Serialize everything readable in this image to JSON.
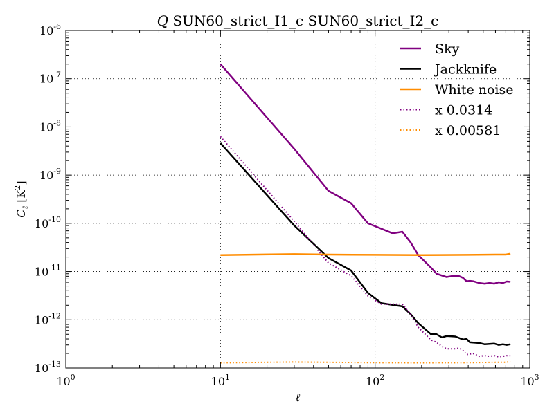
{
  "chart_data": {
    "type": "line",
    "title_symbol": "Q",
    "title_rest": " SUN60_strict_I1_c SUN60_strict_I2_c",
    "xlabel": "ℓ",
    "ylabel": "C_ℓ [K²]",
    "ylabel_main": "C",
    "ylabel_sub": "ℓ",
    "ylabel_unit_open": " [K",
    "ylabel_unit_sup": "2",
    "ylabel_unit_close": "]",
    "xscale": "log",
    "yscale": "log",
    "xlim": [
      1,
      1000
    ],
    "ylim": [
      1e-13,
      1e-06
    ],
    "grid": true,
    "legend_position": "top-right",
    "x_ticks": [
      {
        "value": 1,
        "base": "10",
        "exp": "0"
      },
      {
        "value": 10,
        "base": "10",
        "exp": "1"
      },
      {
        "value": 100,
        "base": "10",
        "exp": "2"
      },
      {
        "value": 1000,
        "base": "10",
        "exp": "3"
      }
    ],
    "y_ticks": [
      {
        "value": 1e-13,
        "base": "10",
        "exp": "-13"
      },
      {
        "value": 1e-12,
        "base": "10",
        "exp": "-12"
      },
      {
        "value": 1e-11,
        "base": "10",
        "exp": "-11"
      },
      {
        "value": 1e-10,
        "base": "10",
        "exp": "-10"
      },
      {
        "value": 1e-09,
        "base": "10",
        "exp": "-9"
      },
      {
        "value": 1e-08,
        "base": "10",
        "exp": "-8"
      },
      {
        "value": 1e-07,
        "base": "10",
        "exp": "-7"
      },
      {
        "value": 1e-06,
        "base": "10",
        "exp": "-6"
      }
    ],
    "series": [
      {
        "name": "Sky",
        "color": "#800080",
        "style": "solid",
        "points": [
          [
            10,
            2e-07
          ],
          [
            30,
            3.5e-09
          ],
          [
            50,
            4.7e-10
          ],
          [
            70,
            2.6e-10
          ],
          [
            90,
            1e-10
          ],
          [
            130,
            6.2e-11
          ],
          [
            150,
            6.7e-11
          ],
          [
            170,
            4e-11
          ],
          [
            190,
            2.2e-11
          ],
          [
            230,
            1.2e-11
          ],
          [
            250,
            9e-12
          ],
          [
            290,
            7.7e-12
          ],
          [
            310,
            8e-12
          ],
          [
            350,
            8e-12
          ],
          [
            370,
            7.4e-12
          ],
          [
            390,
            6.3e-12
          ],
          [
            410,
            6.4e-12
          ],
          [
            430,
            6.3e-12
          ],
          [
            470,
            5.8e-12
          ],
          [
            510,
            5.6e-12
          ],
          [
            550,
            5.8e-12
          ],
          [
            590,
            5.6e-12
          ],
          [
            630,
            6e-12
          ],
          [
            670,
            5.8e-12
          ],
          [
            710,
            6.2e-12
          ],
          [
            750,
            6.1e-12
          ]
        ]
      },
      {
        "name": "Jackknife",
        "color": "#000000",
        "style": "solid",
        "points": [
          [
            10,
            4.6e-09
          ],
          [
            30,
            9e-11
          ],
          [
            50,
            1.9e-11
          ],
          [
            70,
            1.05e-11
          ],
          [
            90,
            3.6e-12
          ],
          [
            110,
            2.2e-12
          ],
          [
            150,
            1.9e-12
          ],
          [
            170,
            1.3e-12
          ],
          [
            190,
            8.5e-13
          ],
          [
            230,
            5e-13
          ],
          [
            250,
            5e-13
          ],
          [
            270,
            4.3e-13
          ],
          [
            290,
            4.6e-13
          ],
          [
            330,
            4.5e-13
          ],
          [
            370,
            3.9e-13
          ],
          [
            390,
            4e-13
          ],
          [
            410,
            3.4e-13
          ],
          [
            470,
            3.3e-13
          ],
          [
            510,
            3.1e-13
          ],
          [
            590,
            3.2e-13
          ],
          [
            630,
            3e-13
          ],
          [
            670,
            3.1e-13
          ],
          [
            710,
            3e-13
          ],
          [
            750,
            3.1e-13
          ]
        ]
      },
      {
        "name": "White noise",
        "color": "#ff8c00",
        "style": "solid",
        "points": [
          [
            10,
            2.2e-11
          ],
          [
            30,
            2.3e-11
          ],
          [
            50,
            2.25e-11
          ],
          [
            100,
            2.22e-11
          ],
          [
            200,
            2.2e-11
          ],
          [
            400,
            2.22e-11
          ],
          [
            600,
            2.25e-11
          ],
          [
            700,
            2.25e-11
          ],
          [
            750,
            2.35e-11
          ]
        ]
      },
      {
        "name": "x 0.0314",
        "color": "#800080",
        "style": "dotted",
        "points": [
          [
            10,
            6.3e-09
          ],
          [
            30,
            1.1e-10
          ],
          [
            50,
            1.5e-11
          ],
          [
            70,
            8.2e-12
          ],
          [
            90,
            3.1e-12
          ],
          [
            110,
            2.1e-12
          ],
          [
            150,
            2.1e-12
          ],
          [
            170,
            1.3e-12
          ],
          [
            190,
            7e-13
          ],
          [
            230,
            3.8e-13
          ],
          [
            250,
            3.4e-13
          ],
          [
            270,
            2.8e-13
          ],
          [
            290,
            2.5e-13
          ],
          [
            330,
            2.5e-13
          ],
          [
            350,
            2.6e-13
          ],
          [
            370,
            2.3e-13
          ],
          [
            390,
            1.9e-13
          ],
          [
            430,
            2e-13
          ],
          [
            470,
            1.75e-13
          ],
          [
            510,
            1.8e-13
          ],
          [
            550,
            1.75e-13
          ],
          [
            590,
            1.8e-13
          ],
          [
            630,
            1.7e-13
          ],
          [
            670,
            1.75e-13
          ],
          [
            710,
            1.8e-13
          ],
          [
            750,
            1.8e-13
          ]
        ]
      },
      {
        "name": "x 0.00581",
        "color": "#ff8c00",
        "style": "dotted",
        "points": [
          [
            10,
            1.28e-13
          ],
          [
            30,
            1.33e-13
          ],
          [
            50,
            1.31e-13
          ],
          [
            100,
            1.29e-13
          ],
          [
            200,
            1.28e-13
          ],
          [
            400,
            1.29e-13
          ],
          [
            600,
            1.31e-13
          ],
          [
            700,
            1.31e-13
          ],
          [
            750,
            1.36e-13
          ]
        ]
      }
    ]
  }
}
